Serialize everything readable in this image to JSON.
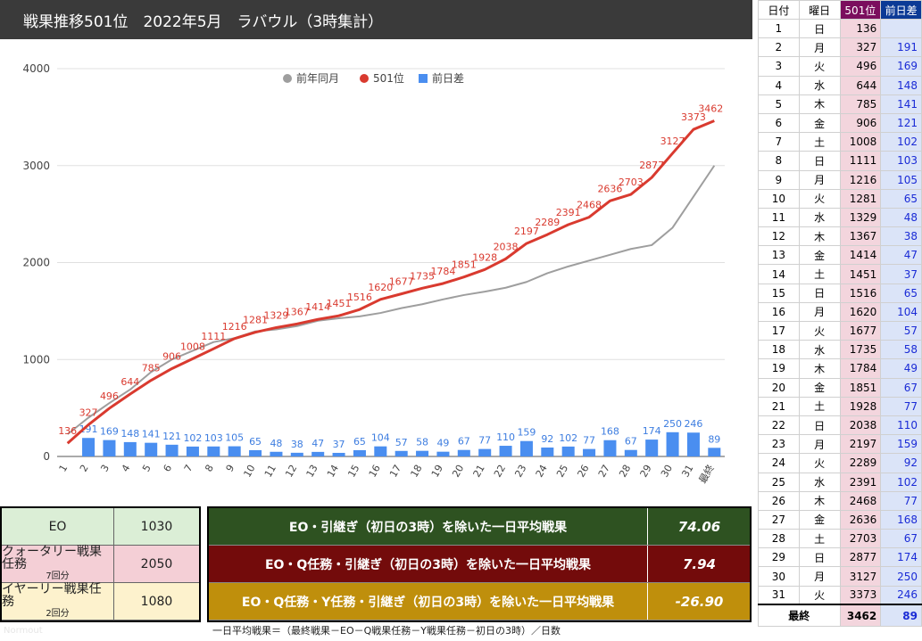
{
  "chart_title": "戦果推移501位　2022年5月　ラバウル（3時集計）",
  "chart_data": {
    "type": "line",
    "title": "戦果推移501位　2022年5月　ラバウル（3時集計）",
    "categories": [
      "1",
      "2",
      "3",
      "4",
      "5",
      "6",
      "7",
      "8",
      "9",
      "10",
      "11",
      "12",
      "13",
      "14",
      "15",
      "16",
      "17",
      "18",
      "19",
      "20",
      "21",
      "22",
      "23",
      "24",
      "25",
      "26",
      "27",
      "28",
      "29",
      "30",
      "31",
      "最終"
    ],
    "ylim": [
      0,
      4000
    ],
    "yticks": [
      0,
      1000,
      2000,
      3000,
      4000
    ],
    "legend_position": "top",
    "series": [
      {
        "name": "前年同月",
        "type": "line",
        "color": "#9e9e9e",
        "values": [
          230,
          400,
          550,
          690,
          870,
          1000,
          1090,
          1180,
          1220,
          1290,
          1310,
          1345,
          1400,
          1425,
          1445,
          1480,
          1530,
          1570,
          1620,
          1665,
          1700,
          1740,
          1800,
          1890,
          1960,
          2020,
          2080,
          2140,
          2180,
          2360,
          2680,
          3000
        ]
      },
      {
        "name": "501位",
        "type": "line",
        "color": "#d93a2f",
        "values": [
          136,
          327,
          496,
          644,
          785,
          906,
          1008,
          1111,
          1216,
          1281,
          1329,
          1367,
          1414,
          1451,
          1516,
          1620,
          1677,
          1735,
          1784,
          1851,
          1928,
          2038,
          2197,
          2289,
          2391,
          2468,
          2636,
          2703,
          2877,
          3127,
          3373,
          3462
        ]
      },
      {
        "name": "前日差",
        "type": "bar",
        "color": "#4a8ef0",
        "values": [
          null,
          191,
          169,
          148,
          141,
          121,
          102,
          103,
          105,
          65,
          48,
          38,
          47,
          37,
          65,
          104,
          57,
          58,
          49,
          67,
          77,
          110,
          159,
          92,
          102,
          77,
          168,
          67,
          174,
          250,
          246,
          89
        ]
      }
    ]
  },
  "stats_left": [
    {
      "label": "EO",
      "sub": "",
      "value": "1030",
      "color": "#dbeed6"
    },
    {
      "label": "クォータリー戦果任務",
      "sub": "7回分",
      "value": "2050",
      "color": "#f4cfd6"
    },
    {
      "label": "イヤーリー戦果任務",
      "sub": "2回分",
      "value": "1080",
      "color": "#fdf2cd"
    }
  ],
  "averages": [
    {
      "label": "EO・引継ぎ（初日の3時）を除いた一日平均戦果",
      "value": "74.06",
      "color": "#2e5221"
    },
    {
      "label": "EO・Q任務・引継ぎ（初日の3時）を除いた一日平均戦果",
      "value": "7.94",
      "color": "#730b0b"
    },
    {
      "label": "EO・Q任務・Y任務・引継ぎ（初日の3時）を除いた一日平均戦果",
      "value": "-26.90",
      "color": "#bf8f0c"
    }
  ],
  "formula": "一日平均戦果＝（最終戦果－EO－Q戦果任務－Y戦果任務－初日の3時）／日数",
  "watermark": "Normout",
  "table": {
    "headers": {
      "date": "日付",
      "dow": "曜日",
      "rank": "501位",
      "diff": "前日差"
    },
    "rows": [
      {
        "date": "1",
        "dow": "日",
        "rank": "136",
        "diff": ""
      },
      {
        "date": "2",
        "dow": "月",
        "rank": "327",
        "diff": "191"
      },
      {
        "date": "3",
        "dow": "火",
        "rank": "496",
        "diff": "169"
      },
      {
        "date": "4",
        "dow": "水",
        "rank": "644",
        "diff": "148"
      },
      {
        "date": "5",
        "dow": "木",
        "rank": "785",
        "diff": "141"
      },
      {
        "date": "6",
        "dow": "金",
        "rank": "906",
        "diff": "121"
      },
      {
        "date": "7",
        "dow": "土",
        "rank": "1008",
        "diff": "102"
      },
      {
        "date": "8",
        "dow": "日",
        "rank": "1111",
        "diff": "103"
      },
      {
        "date": "9",
        "dow": "月",
        "rank": "1216",
        "diff": "105"
      },
      {
        "date": "10",
        "dow": "火",
        "rank": "1281",
        "diff": "65"
      },
      {
        "date": "11",
        "dow": "水",
        "rank": "1329",
        "diff": "48"
      },
      {
        "date": "12",
        "dow": "木",
        "rank": "1367",
        "diff": "38"
      },
      {
        "date": "13",
        "dow": "金",
        "rank": "1414",
        "diff": "47"
      },
      {
        "date": "14",
        "dow": "土",
        "rank": "1451",
        "diff": "37"
      },
      {
        "date": "15",
        "dow": "日",
        "rank": "1516",
        "diff": "65"
      },
      {
        "date": "16",
        "dow": "月",
        "rank": "1620",
        "diff": "104"
      },
      {
        "date": "17",
        "dow": "火",
        "rank": "1677",
        "diff": "57"
      },
      {
        "date": "18",
        "dow": "水",
        "rank": "1735",
        "diff": "58"
      },
      {
        "date": "19",
        "dow": "木",
        "rank": "1784",
        "diff": "49"
      },
      {
        "date": "20",
        "dow": "金",
        "rank": "1851",
        "diff": "67"
      },
      {
        "date": "21",
        "dow": "土",
        "rank": "1928",
        "diff": "77"
      },
      {
        "date": "22",
        "dow": "日",
        "rank": "2038",
        "diff": "110"
      },
      {
        "date": "23",
        "dow": "月",
        "rank": "2197",
        "diff": "159"
      },
      {
        "date": "24",
        "dow": "火",
        "rank": "2289",
        "diff": "92"
      },
      {
        "date": "25",
        "dow": "水",
        "rank": "2391",
        "diff": "102"
      },
      {
        "date": "26",
        "dow": "木",
        "rank": "2468",
        "diff": "77"
      },
      {
        "date": "27",
        "dow": "金",
        "rank": "2636",
        "diff": "168"
      },
      {
        "date": "28",
        "dow": "土",
        "rank": "2703",
        "diff": "67"
      },
      {
        "date": "29",
        "dow": "日",
        "rank": "2877",
        "diff": "174"
      },
      {
        "date": "30",
        "dow": "月",
        "rank": "3127",
        "diff": "250"
      },
      {
        "date": "31",
        "dow": "火",
        "rank": "3373",
        "diff": "246"
      }
    ],
    "final": {
      "label": "最終",
      "rank": "3462",
      "diff": "89"
    }
  }
}
